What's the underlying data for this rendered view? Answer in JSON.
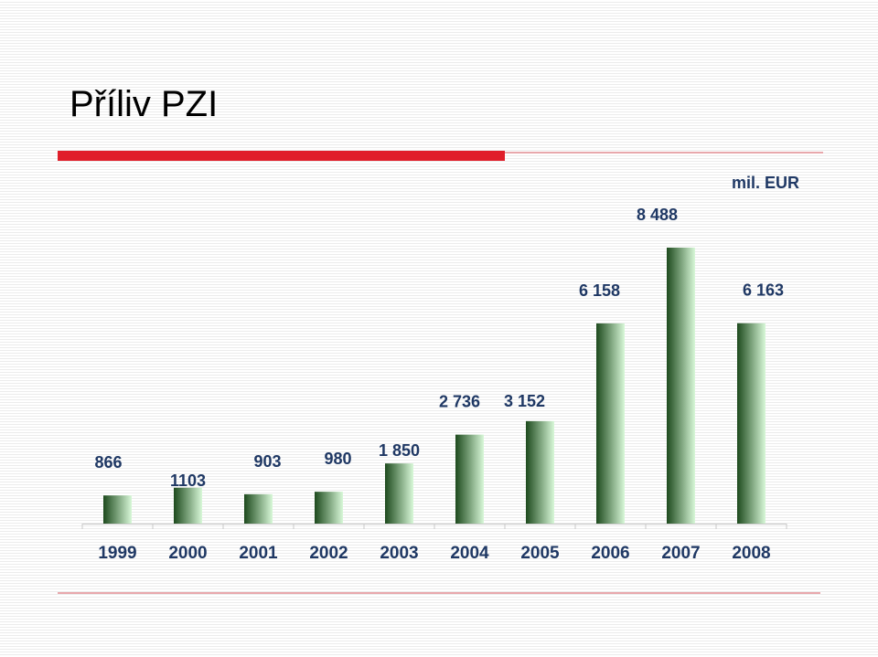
{
  "slide": {
    "title": "Příliv PZI",
    "unit": "mil. EUR"
  },
  "colors": {
    "accent_red": "#e01e2a",
    "bar_dark": "#1d4a1d",
    "bar_light": "#d8f8d8",
    "label": "#1f3864"
  },
  "chart_data": {
    "type": "bar",
    "title": "Příliv PZI",
    "ylabel": "mil. EUR",
    "categories": [
      "1999",
      "2000",
      "2001",
      "2002",
      "2003",
      "2004",
      "2005",
      "2006",
      "2007",
      "2008"
    ],
    "values": [
      866,
      1103,
      903,
      980,
      1850,
      2736,
      3152,
      6158,
      8488,
      6163
    ],
    "value_labels": [
      "866",
      "1103",
      "903",
      "980",
      "1 850",
      "2 736",
      "3 152",
      "6 158",
      "8 488",
      "6 163"
    ],
    "ylim": [
      0,
      8488
    ],
    "grid": false,
    "legend": "none"
  }
}
